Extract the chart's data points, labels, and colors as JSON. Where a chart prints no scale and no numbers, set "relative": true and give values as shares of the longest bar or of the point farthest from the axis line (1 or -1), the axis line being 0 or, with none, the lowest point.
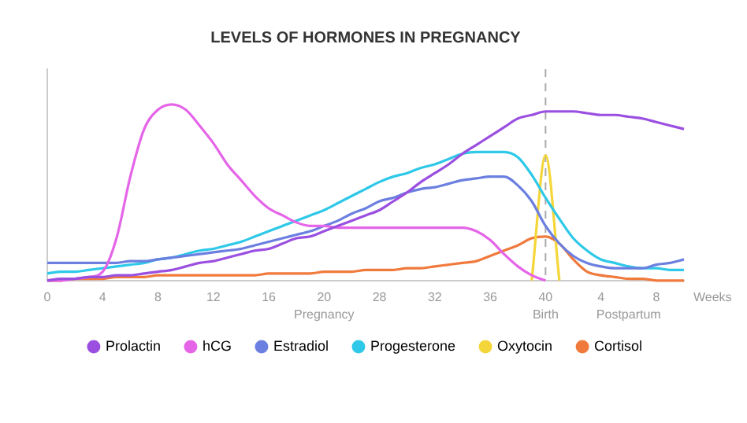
{
  "chart_data": {
    "type": "line",
    "title": "LEVELS OF HORMONES IN PREGNANCY",
    "xlabel": "Weeks",
    "relative": true,
    "legend": "bottom",
    "grid": false,
    "marker": "none",
    "line_style": "solid",
    "annotations": [
      "Pregnancy",
      "Birth",
      "Postpartum"
    ],
    "ref_lines": [
      {
        "axis": "x",
        "value": "40",
        "color": "#aaaaaa",
        "line_style": "dashed"
      }
    ],
    "categories": [
      "0",
      null,
      null,
      null,
      "4",
      null,
      null,
      null,
      "8",
      null,
      null,
      null,
      "12",
      null,
      null,
      null,
      "16",
      null,
      null,
      null,
      "20",
      null,
      null,
      null,
      "28",
      null,
      null,
      null,
      "32",
      null,
      null,
      null,
      "36",
      null,
      null,
      null,
      "40",
      null,
      null,
      null,
      "4",
      null,
      null,
      null,
      "8",
      null,
      null
    ],
    "series": [
      {
        "name": "Prolactin",
        "color": "#9b4fe0",
        "values": [
          0,
          0.01,
          0.01,
          0.02,
          0.02,
          0.03,
          0.03,
          0.04,
          0.05,
          0.06,
          0.08,
          0.1,
          0.11,
          0.13,
          0.15,
          0.17,
          0.18,
          0.21,
          0.24,
          0.25,
          0.28,
          0.31,
          0.34,
          0.37,
          0.4,
          0.45,
          0.5,
          0.56,
          0.61,
          0.66,
          0.72,
          0.77,
          0.82,
          0.87,
          0.92,
          0.94,
          0.96,
          0.96,
          0.96,
          0.95,
          0.94,
          0.94,
          0.93,
          0.92,
          0.9,
          0.88,
          0.86
        ]
      },
      {
        "name": "hCG",
        "color": "#e565e8",
        "values": [
          0,
          0,
          0.01,
          0.02,
          0.05,
          0.24,
          0.59,
          0.86,
          0.97,
          1,
          0.97,
          0.88,
          0.78,
          0.66,
          0.57,
          0.48,
          0.41,
          0.37,
          0.33,
          0.31,
          0.31,
          0.3,
          0.3,
          0.3,
          0.3,
          0.3,
          0.3,
          0.3,
          0.3,
          0.3,
          0.3,
          0.28,
          0.23,
          0.15,
          0.08,
          0.03,
          0,
          null,
          null,
          null,
          null,
          null,
          null,
          null,
          null,
          null,
          null
        ]
      },
      {
        "name": "Estradiol",
        "color": "#6b7fe0",
        "values": [
          0.1,
          0.1,
          0.1,
          0.1,
          0.1,
          0.1,
          0.11,
          0.11,
          0.12,
          0.13,
          0.14,
          0.15,
          0.16,
          0.17,
          0.18,
          0.2,
          0.22,
          0.24,
          0.26,
          0.28,
          0.31,
          0.34,
          0.38,
          0.41,
          0.45,
          0.47,
          0.5,
          0.52,
          0.53,
          0.55,
          0.57,
          0.58,
          0.59,
          0.59,
          0.54,
          0.45,
          0.31,
          0.21,
          0.14,
          0.1,
          0.08,
          0.07,
          0.07,
          0.07,
          0.09,
          0.1,
          0.12
        ]
      },
      {
        "name": "Progesterone",
        "color": "#2ec8e8",
        "values": [
          0.04,
          0.05,
          0.05,
          0.06,
          0.07,
          0.08,
          0.09,
          0.1,
          0.12,
          0.13,
          0.15,
          0.17,
          0.18,
          0.2,
          0.22,
          0.25,
          0.28,
          0.31,
          0.34,
          0.37,
          0.4,
          0.44,
          0.48,
          0.52,
          0.56,
          0.59,
          0.61,
          0.64,
          0.66,
          0.69,
          0.72,
          0.73,
          0.73,
          0.73,
          0.7,
          0.6,
          0.47,
          0.35,
          0.24,
          0.17,
          0.12,
          0.1,
          0.08,
          0.07,
          0.07,
          0.06,
          0.06
        ]
      },
      {
        "name": "Oxytocin",
        "color": "#f5d63a",
        "values": [
          null,
          null,
          null,
          null,
          null,
          null,
          null,
          null,
          null,
          null,
          null,
          null,
          null,
          null,
          null,
          null,
          null,
          null,
          null,
          null,
          null,
          null,
          null,
          null,
          null,
          null,
          null,
          null,
          null,
          null,
          null,
          null,
          null,
          null,
          null,
          0,
          0.71,
          0,
          null,
          null,
          null,
          null,
          null,
          null,
          null,
          null,
          null
        ]
      },
      {
        "name": "Cortisol",
        "color": "#f07a3c",
        "values": [
          0,
          0,
          0.01,
          0.01,
          0.01,
          0.02,
          0.02,
          0.02,
          0.03,
          0.03,
          0.03,
          0.03,
          0.03,
          0.03,
          0.03,
          0.03,
          0.04,
          0.04,
          0.04,
          0.04,
          0.05,
          0.05,
          0.05,
          0.06,
          0.06,
          0.06,
          0.07,
          0.07,
          0.08,
          0.09,
          0.1,
          0.11,
          0.14,
          0.17,
          0.2,
          0.24,
          0.25,
          0.21,
          0.12,
          0.05,
          0.03,
          0.02,
          0.01,
          0.01,
          0,
          0,
          0
        ]
      }
    ]
  }
}
